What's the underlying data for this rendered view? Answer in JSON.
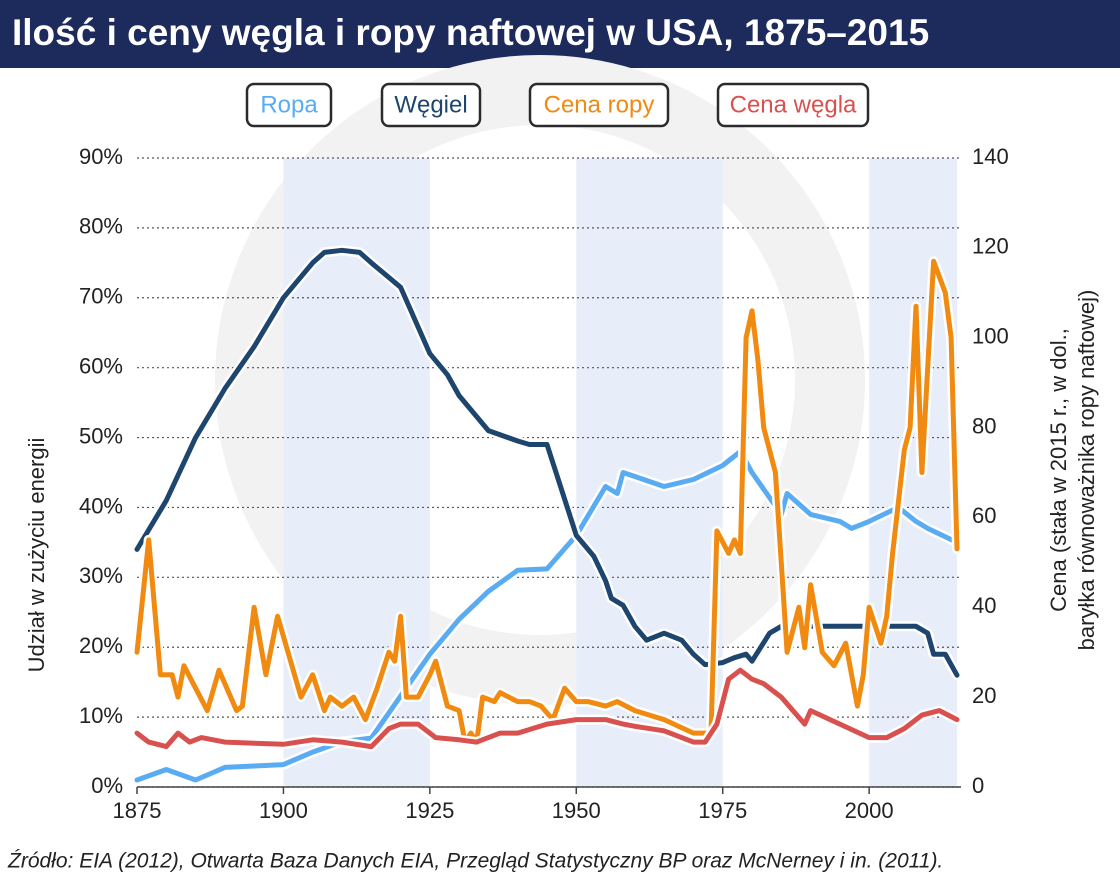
{
  "chart_data": {
    "type": "line",
    "title": "Ilość i ceny węgla i ropy naftowej w USA, 1875–2015",
    "ylabel": "Udział w zużyciu energii",
    "y2label": [
      "Cena (stała w 2015 r., w dol.,",
      "baryłka równoważnika ropy naftowej)"
    ],
    "source": "Źródło: EIA (2012), Otwarta Baza Danych EIA, Przegląd Statystyczny BP oraz McNerney i in. (2011).",
    "xlim": [
      1875,
      2015
    ],
    "xticks": [
      1875,
      1900,
      1925,
      1950,
      1975,
      2000
    ],
    "ylim": [
      0,
      90
    ],
    "yticks": [
      {
        "value": 0,
        "label": "0%"
      },
      {
        "value": 10,
        "label": "10%"
      },
      {
        "value": 20,
        "label": "20%"
      },
      {
        "value": 30,
        "label": "30%"
      },
      {
        "value": 40,
        "label": "40%"
      },
      {
        "value": 50,
        "label": "50%"
      },
      {
        "value": 60,
        "label": "60%"
      },
      {
        "value": 70,
        "label": "70%"
      },
      {
        "value": 80,
        "label": "80%"
      },
      {
        "value": 90,
        "label": "90%"
      }
    ],
    "y2lim": [
      0,
      140
    ],
    "y2ticks": [
      0,
      20,
      40,
      60,
      80,
      100,
      120,
      140
    ],
    "grid": true,
    "bands": [
      [
        1900,
        1925
      ],
      [
        1950,
        1975
      ],
      [
        2000,
        2015
      ]
    ],
    "series": [
      {
        "name": "Ropa",
        "color": "#5aacf2",
        "x": [
          1875,
          1880,
          1885,
          1890,
          1895,
          1900,
          1905,
          1910,
          1915,
          1920,
          1925,
          1930,
          1935,
          1940,
          1945,
          1950,
          1955,
          1957,
          1958,
          1965,
          1970,
          1975,
          1978,
          1980,
          1985,
          1986,
          1990,
          1995,
          1997,
          2000,
          2005,
          2008,
          2010,
          2015
        ],
        "values": [
          1,
          2.5,
          1,
          2.8,
          3,
          3.2,
          5,
          6.5,
          7,
          13,
          19,
          24,
          28,
          31,
          31.2,
          36,
          43,
          42,
          45,
          43,
          44,
          46,
          48,
          45,
          39,
          42,
          39,
          38,
          37,
          38,
          40,
          38,
          37,
          35
        ]
      },
      {
        "name": "Węgiel",
        "color": "#1e456d",
        "x": [
          1875,
          1880,
          1885,
          1890,
          1895,
          1900,
          1905,
          1907,
          1910,
          1913,
          1915,
          1920,
          1925,
          1928,
          1930,
          1935,
          1940,
          1942,
          1945,
          1950,
          1953,
          1955,
          1956,
          1958,
          1960,
          1962,
          1965,
          1968,
          1970,
          1972,
          1975,
          1977,
          1979,
          1980,
          1983,
          1985,
          1990,
          2000,
          2005,
          2008,
          2010,
          2011,
          2013,
          2015
        ],
        "values": [
          34,
          41,
          50,
          57,
          63,
          70,
          75,
          76.5,
          76.8,
          76.5,
          75,
          71.5,
          62,
          59,
          56,
          51,
          49.5,
          49,
          49,
          36,
          33,
          29.5,
          27,
          26,
          23,
          21,
          22,
          21,
          19,
          17.5,
          17.8,
          18.5,
          19,
          18,
          22,
          23,
          23,
          23,
          23,
          23,
          22,
          19,
          19,
          16
        ]
      },
      {
        "name": "Cena ropy",
        "color": "#f08a10",
        "axis": "y2",
        "x": [
          1875,
          1877,
          1879,
          1881,
          1882,
          1883,
          1885,
          1887,
          1889,
          1892,
          1893,
          1895,
          1897,
          1899,
          1903,
          1905,
          1907,
          1908,
          1910,
          1912,
          1914,
          1916,
          1918,
          1919,
          1920,
          1921,
          1923,
          1925,
          1926,
          1928,
          1930,
          1931,
          1932,
          1933,
          1934,
          1936,
          1937,
          1940,
          1942,
          1944,
          1946,
          1948,
          1950,
          1952,
          1955,
          1957,
          1960,
          1965,
          1970,
          1973,
          1974,
          1976,
          1977,
          1978,
          1979,
          1980,
          1981,
          1982,
          1984,
          1986,
          1988,
          1989,
          1990,
          1992,
          1994,
          1996,
          1998,
          1999,
          2000,
          2002,
          2003,
          2004,
          2006,
          2007,
          2008,
          2009,
          2011,
          2013,
          2014,
          2015
        ],
        "values": [
          30,
          55,
          25,
          25,
          20,
          27,
          22,
          17,
          26,
          17,
          18,
          40,
          25,
          38,
          20,
          25,
          17,
          20,
          18,
          20,
          15,
          22,
          30,
          28,
          38,
          20,
          20,
          25,
          28,
          18,
          17,
          10,
          12,
          10,
          20,
          19,
          21,
          19,
          19,
          18,
          15,
          22,
          19,
          19,
          18,
          19,
          17,
          15,
          12,
          12,
          57,
          52,
          55,
          52,
          100,
          106,
          95,
          80,
          70,
          30,
          40,
          31,
          45,
          30,
          27,
          32,
          18,
          25,
          40,
          32,
          38,
          52,
          75,
          80,
          107,
          70,
          117,
          110,
          100,
          53
        ]
      },
      {
        "name": "Cena węgla",
        "color": "#d9514f",
        "axis": "y2",
        "x": [
          1875,
          1877,
          1880,
          1882,
          1884,
          1886,
          1890,
          1900,
          1905,
          1910,
          1915,
          1918,
          1920,
          1923,
          1926,
          1930,
          1933,
          1937,
          1940,
          1945,
          1950,
          1955,
          1958,
          1960,
          1965,
          1970,
          1972,
          1974,
          1976,
          1978,
          1980,
          1982,
          1985,
          1987,
          1989,
          1990,
          1995,
          2000,
          2003,
          2006,
          2009,
          2012,
          2015
        ],
        "values": [
          12,
          10,
          9,
          12,
          10,
          11,
          10,
          9.5,
          10.5,
          10,
          9,
          13,
          14,
          14,
          11,
          10.5,
          10,
          12,
          12,
          14,
          15,
          15,
          14,
          13.5,
          12.5,
          10,
          10,
          14,
          24,
          26,
          24,
          23,
          20,
          17,
          14,
          17,
          14,
          11,
          11,
          13,
          16,
          17,
          15
        ]
      }
    ]
  }
}
